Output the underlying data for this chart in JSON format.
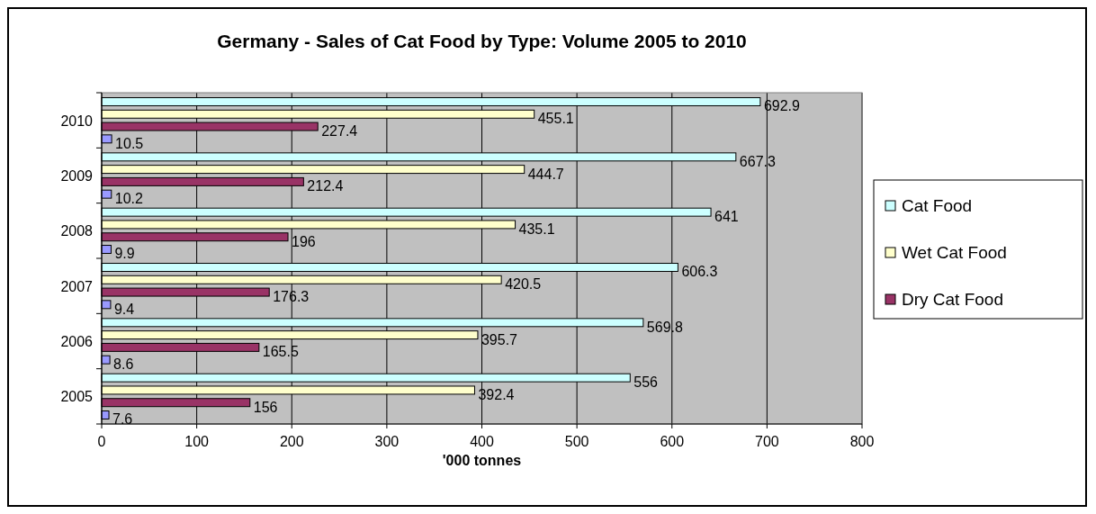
{
  "chart_data": {
    "type": "bar",
    "orientation": "horizontal",
    "title": "Germany - Sales of Cat Food by Type: Volume 2005 to 2010",
    "xlabel": "'000 tonnes",
    "categories": [
      "2010",
      "2009",
      "2008",
      "2007",
      "2006",
      "2005"
    ],
    "series": [
      {
        "name": "Cat Food",
        "color": "#ccffff",
        "values": [
          692.9,
          667.3,
          641,
          606.3,
          569.8,
          556
        ]
      },
      {
        "name": "Wet Cat Food",
        "color": "#ffffcc",
        "values": [
          455.1,
          444.7,
          435.1,
          420.5,
          395.7,
          392.4
        ]
      },
      {
        "name": "Dry Cat Food",
        "color": "#993366",
        "values": [
          227.4,
          212.4,
          196,
          176.3,
          165.5,
          156
        ]
      },
      {
        "color": "#9999ff",
        "values": [
          10.5,
          10.2,
          9.9,
          9.4,
          8.6,
          7.6
        ]
      }
    ],
    "xlim": [
      0,
      800
    ],
    "xticks": [
      0,
      100,
      200,
      300,
      400,
      500,
      600,
      700,
      800
    ],
    "grid": "x",
    "legend": "right",
    "data_labels": true
  }
}
